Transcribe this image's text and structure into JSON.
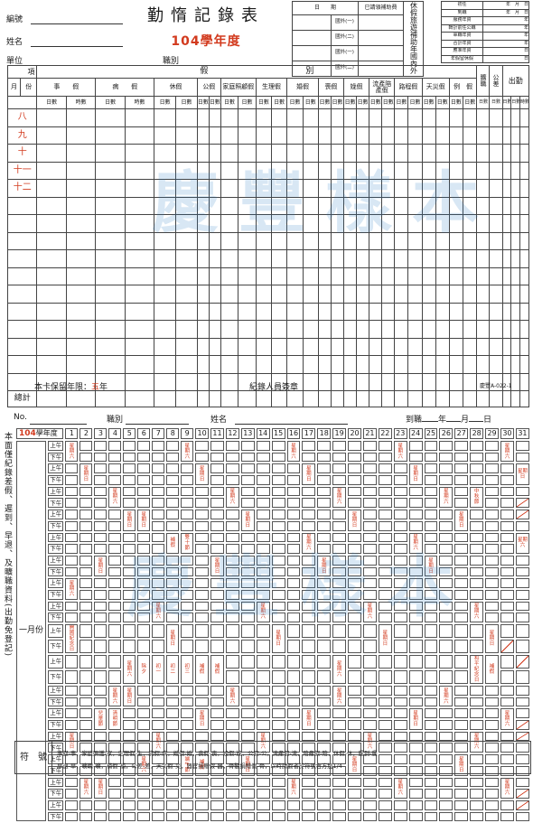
{
  "upper": {
    "fields": {
      "serial_label": "編號",
      "name_label": "姓名",
      "unit_label": "單位",
      "position_label": "職別"
    },
    "title": "勤惰記錄表",
    "year_title": "104學年度",
    "topbox": {
      "date_header": "日　　期",
      "subsidy_header": "已請領補助費",
      "rows": [
        "國外(一)",
        "國外(二)",
        "國外(一)",
        "國外(二)"
      ],
      "vertical": "休假旅遊補助年國內外"
    },
    "summary": [
      {
        "label": "初任",
        "unit": "年　月　日"
      },
      {
        "label": "到職",
        "unit": "年　月　日"
      },
      {
        "label": "服務年資",
        "unit": "年"
      },
      {
        "label": "轉計前任公職",
        "unit": "年"
      },
      {
        "label": "軍職年資",
        "unit": "年"
      },
      {
        "label": "合計年資",
        "unit": "年"
      },
      {
        "label": "應准年資",
        "unit": "日"
      },
      {
        "label": "年假留休假",
        "unit": "日"
      }
    ],
    "header": {
      "corner_top": "項",
      "corner_mid": "目",
      "corner_month": "月",
      "corner_day": "份",
      "group_label": "假　　　　　　　　　　　　別",
      "leave_types": [
        "事　　假",
        "病　　假",
        "休假",
        "公假",
        "家庭照顧假",
        "生理假",
        "婚假",
        "喪假",
        "娩假",
        "流產陪產假",
        "路程假",
        "天災假",
        "例　假"
      ],
      "absent": "曠職",
      "official": "公差",
      "attend": "出勤",
      "sub_day": "日數",
      "sub_hour": "時數"
    },
    "months": [
      "八",
      "九",
      "十",
      "十一",
      "十二"
    ],
    "total": "總計",
    "retention_label": "本卡保留年限：",
    "retention_value": "五",
    "retention_unit": "年",
    "signer": "紀錄人員簽章",
    "code": "慶豐A-022-1",
    "watermark": "慶豐樣本"
  },
  "lower": {
    "no_label": "No.",
    "position_label": "職別",
    "name_label": "姓名",
    "report_label": "到職",
    "year_u": "年",
    "month_u": "月",
    "day_u": "日",
    "year_value": "104",
    "year_suffix": "學年度",
    "am": "上午",
    "pm": "下午",
    "month_label": "一月份",
    "side_note": "本面僅紀錄差假、遲到、早退、及曠職資料(出勤免登記)",
    "legend_title": "符　號",
    "legend_line1": "事假-事，家庭照護-家，生理假-生，病假-病，婚假-婚，喪假-喪，娩假-娩，公假-公，流產假-流，陪產假-陪，休假-休，遲到-遲",
    "legend_line2": "早退-早，曠職-曠，補假-補，公差-差，天災假-災，器官捐贈假-器，骨髓捐贈假-骨，以時請假者於符號右方加1/4",
    "watermark": "慶豐樣本",
    "marks": [
      {
        "d": 1,
        "r": 1,
        "t": "星期六"
      },
      {
        "d": 9,
        "r": 1,
        "t": "星期六"
      },
      {
        "d": 16,
        "r": 1,
        "t": "星期六"
      },
      {
        "d": 23,
        "r": 1,
        "t": "星期六"
      },
      {
        "d": 30,
        "r": 1,
        "t": "星期六"
      },
      {
        "d": 2,
        "r": 3,
        "t": "星期日"
      },
      {
        "d": 10,
        "r": 3,
        "t": "星期日"
      },
      {
        "d": 17,
        "r": 3,
        "t": "星期日"
      },
      {
        "d": 24,
        "r": 3,
        "t": "星期日"
      },
      {
        "d": 31,
        "r": 3,
        "t": "星期日"
      },
      {
        "d": 4,
        "r": 5,
        "t": "星期六"
      },
      {
        "d": 12,
        "r": 5,
        "t": "星期六"
      },
      {
        "d": 19,
        "r": 5,
        "t": "星期六"
      },
      {
        "d": 26,
        "r": 5,
        "t": "星期六"
      },
      {
        "d": 28,
        "r": 5,
        "t": "中秋節"
      },
      {
        "d": 5,
        "r": 7,
        "t": "星期日"
      },
      {
        "d": 13,
        "r": 7,
        "t": "星期日"
      },
      {
        "d": 20,
        "r": 7,
        "t": "星期日"
      },
      {
        "d": 27,
        "r": 7,
        "t": "星期日"
      },
      {
        "d": 6,
        "r": 7,
        "t": "星期日"
      },
      {
        "d": 8,
        "r": 9,
        "t": "補假"
      },
      {
        "d": 9,
        "r": 9,
        "t": "雙十節"
      },
      {
        "d": 17,
        "r": 9,
        "t": "星期六"
      },
      {
        "d": 24,
        "r": 9,
        "t": "星期六"
      },
      {
        "d": 31,
        "r": 9,
        "t": "星期六"
      },
      {
        "d": 3,
        "r": 11,
        "t": "星期日"
      },
      {
        "d": 11,
        "r": 11,
        "t": "星期日"
      },
      {
        "d": 18,
        "r": 11,
        "t": "星期日"
      },
      {
        "d": 25,
        "r": 11,
        "t": "星期日"
      },
      {
        "d": 1,
        "r": 13,
        "t": "星期六"
      },
      {
        "d": 7,
        "r": 15,
        "t": "星期六"
      },
      {
        "d": 14,
        "r": 15,
        "t": "星期六"
      },
      {
        "d": 21,
        "r": 15,
        "t": "星期六"
      },
      {
        "d": 28,
        "r": 15,
        "t": "星期六"
      },
      {
        "d": 1,
        "r": 17,
        "t": "開國紀念日"
      },
      {
        "d": 8,
        "r": 17,
        "t": "星期日"
      },
      {
        "d": 15,
        "r": 17,
        "t": "星期日"
      },
      {
        "d": 22,
        "r": 17,
        "t": "星期日"
      },
      {
        "d": 29,
        "r": 17,
        "t": "星期日"
      },
      {
        "d": 5,
        "r": 19,
        "t": "星期六"
      },
      {
        "d": 6,
        "r": 19,
        "t": "除夕"
      },
      {
        "d": 7,
        "r": 19,
        "t": "初一"
      },
      {
        "d": 8,
        "r": 19,
        "t": "初二"
      },
      {
        "d": 9,
        "r": 19,
        "t": "初三"
      },
      {
        "d": 10,
        "r": 19,
        "t": "補假"
      },
      {
        "d": 11,
        "r": 19,
        "t": "補假"
      },
      {
        "d": 19,
        "r": 19,
        "t": "星期六"
      },
      {
        "d": 28,
        "r": 19,
        "t": "和平紀念日"
      },
      {
        "d": 29,
        "r": 19,
        "t": "補假"
      },
      {
        "d": 4,
        "r": 21,
        "t": "星期六"
      },
      {
        "d": 5,
        "r": 21,
        "t": "星期日"
      },
      {
        "d": 12,
        "r": 21,
        "t": "星期六"
      },
      {
        "d": 19,
        "r": 21,
        "t": "星期六"
      },
      {
        "d": 26,
        "r": 21,
        "t": "星期六"
      },
      {
        "d": 3,
        "r": 23,
        "t": "兒童節"
      },
      {
        "d": 4,
        "r": 23,
        "t": "清明節"
      },
      {
        "d": 10,
        "r": 23,
        "t": "星期日"
      },
      {
        "d": 17,
        "r": 23,
        "t": "星期日"
      },
      {
        "d": 24,
        "r": 23,
        "t": "星期日"
      },
      {
        "d": 30,
        "r": 23,
        "t": "星期六"
      },
      {
        "d": 1,
        "r": 25,
        "t": "星期日"
      },
      {
        "d": 7,
        "r": 25,
        "t": "星期六"
      },
      {
        "d": 14,
        "r": 25,
        "t": "星期六"
      },
      {
        "d": 21,
        "r": 25,
        "t": "星期六"
      },
      {
        "d": 28,
        "r": 25,
        "t": "星期六"
      },
      {
        "d": 6,
        "r": 27,
        "t": "星期六"
      },
      {
        "d": 9,
        "r": 27,
        "t": "端午節"
      },
      {
        "d": 10,
        "r": 27,
        "t": "補假"
      },
      {
        "d": 13,
        "r": 27,
        "t": "星期日"
      },
      {
        "d": 20,
        "r": 27,
        "t": "星期日"
      },
      {
        "d": 27,
        "r": 27,
        "t": "星期日"
      },
      {
        "d": 2,
        "r": 29,
        "t": "星期六"
      },
      {
        "d": 3,
        "r": 29,
        "t": "星期日"
      },
      {
        "d": 16,
        "r": 29,
        "t": "星期六"
      },
      {
        "d": 23,
        "r": 29,
        "t": "星期六"
      },
      {
        "d": 30,
        "r": 29,
        "t": "星期六"
      }
    ],
    "slashes": [
      {
        "d": 31,
        "r": 6
      },
      {
        "d": 31,
        "r": 7
      },
      {
        "d": 30,
        "r": 18
      },
      {
        "d": 31,
        "r": 19
      },
      {
        "d": 31,
        "r": 24
      },
      {
        "d": 31,
        "r": 25
      },
      {
        "d": 31,
        "r": 30
      },
      {
        "d": 31,
        "r": 31
      }
    ]
  }
}
